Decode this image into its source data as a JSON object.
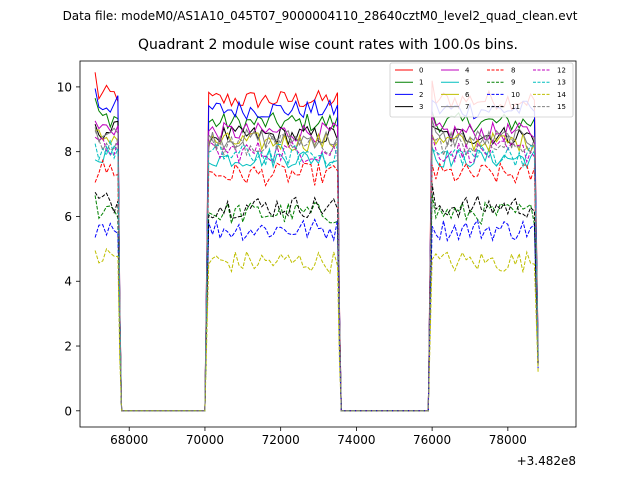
{
  "suptitle": "Data file: modeM0/AS1A10_045T07_9000004110_28640cztM0_level2_quad_clean.evt",
  "chart_data": {
    "type": "line",
    "title": "Quadrant 2 module wise count rates with 100.0s bins.",
    "xlabel": "",
    "ylabel": "",
    "x_offset_label": "+3.482e8",
    "xlim": [
      66700,
      79800
    ],
    "ylim": [
      -0.5,
      10.8
    ],
    "x_ticks": [
      68000,
      70000,
      72000,
      74000,
      76000,
      78000
    ],
    "x_tick_labels": [
      "68000",
      "70000",
      "72000",
      "74000",
      "76000",
      "78000"
    ],
    "y_ticks": [
      0,
      2,
      4,
      6,
      8,
      10
    ],
    "y_tick_labels": [
      "0",
      "2",
      "4",
      "6",
      "8",
      "10"
    ],
    "grid": false,
    "legend_position": "top-right",
    "legend_columns": 4,
    "segments": [
      {
        "start": 67100,
        "end": 67700
      },
      {
        "start": 70100,
        "end": 73500
      },
      {
        "start": 76000,
        "end": 78700
      }
    ],
    "gaps": [
      {
        "from": 67800,
        "to": 70000
      },
      {
        "from": 73600,
        "to": 75900
      }
    ],
    "bin_width": 100,
    "series": [
      {
        "name": "0",
        "color": "#ff0000",
        "dash": "solid",
        "level": 9.6,
        "first": 10.3,
        "last": 2.0
      },
      {
        "name": "1",
        "color": "#008000",
        "dash": "solid",
        "level": 8.9,
        "first": 9.5,
        "last": 1.8
      },
      {
        "name": "2",
        "color": "#0000ff",
        "dash": "solid",
        "level": 9.3,
        "first": 9.8,
        "last": 1.9
      },
      {
        "name": "3",
        "color": "#000000",
        "dash": "solid",
        "level": 8.5,
        "first": 8.7,
        "last": 1.7
      },
      {
        "name": "4",
        "color": "#bf00bf",
        "dash": "solid",
        "level": 8.6,
        "first": 8.8,
        "last": 1.7
      },
      {
        "name": "5",
        "color": "#00bfbf",
        "dash": "solid",
        "level": 7.8,
        "first": 7.6,
        "last": 1.6
      },
      {
        "name": "6",
        "color": "#bfbf00",
        "dash": "solid",
        "level": 8.3,
        "first": 8.5,
        "last": 1.7
      },
      {
        "name": "7",
        "color": "#808080",
        "dash": "solid",
        "level": 8.4,
        "first": 8.6,
        "last": 1.7
      },
      {
        "name": "8",
        "color": "#ff0000",
        "dash": "dashed",
        "level": 7.3,
        "first": 6.9,
        "last": 1.5
      },
      {
        "name": "9",
        "color": "#008000",
        "dash": "dashed",
        "level": 6.1,
        "first": 6.5,
        "last": 1.4
      },
      {
        "name": "10",
        "color": "#0000ff",
        "dash": "dashed",
        "level": 5.6,
        "first": 5.2,
        "last": 1.3
      },
      {
        "name": "11",
        "color": "#000000",
        "dash": "dashed",
        "level": 6.3,
        "first": 6.6,
        "last": 1.4
      },
      {
        "name": "12",
        "color": "#bf00bf",
        "dash": "dashed",
        "level": 8.0,
        "first": 8.3,
        "last": 1.6
      },
      {
        "name": "13",
        "color": "#00bfbf",
        "dash": "dashed",
        "level": 7.9,
        "first": 8.1,
        "last": 1.6
      },
      {
        "name": "14",
        "color": "#bfbf00",
        "dash": "dashed",
        "level": 4.6,
        "first": 4.8,
        "last": 1.2
      },
      {
        "name": "15",
        "color": "#808080",
        "dash": "dashed",
        "level": 8.2,
        "first": 8.5,
        "last": 1.6
      }
    ]
  }
}
